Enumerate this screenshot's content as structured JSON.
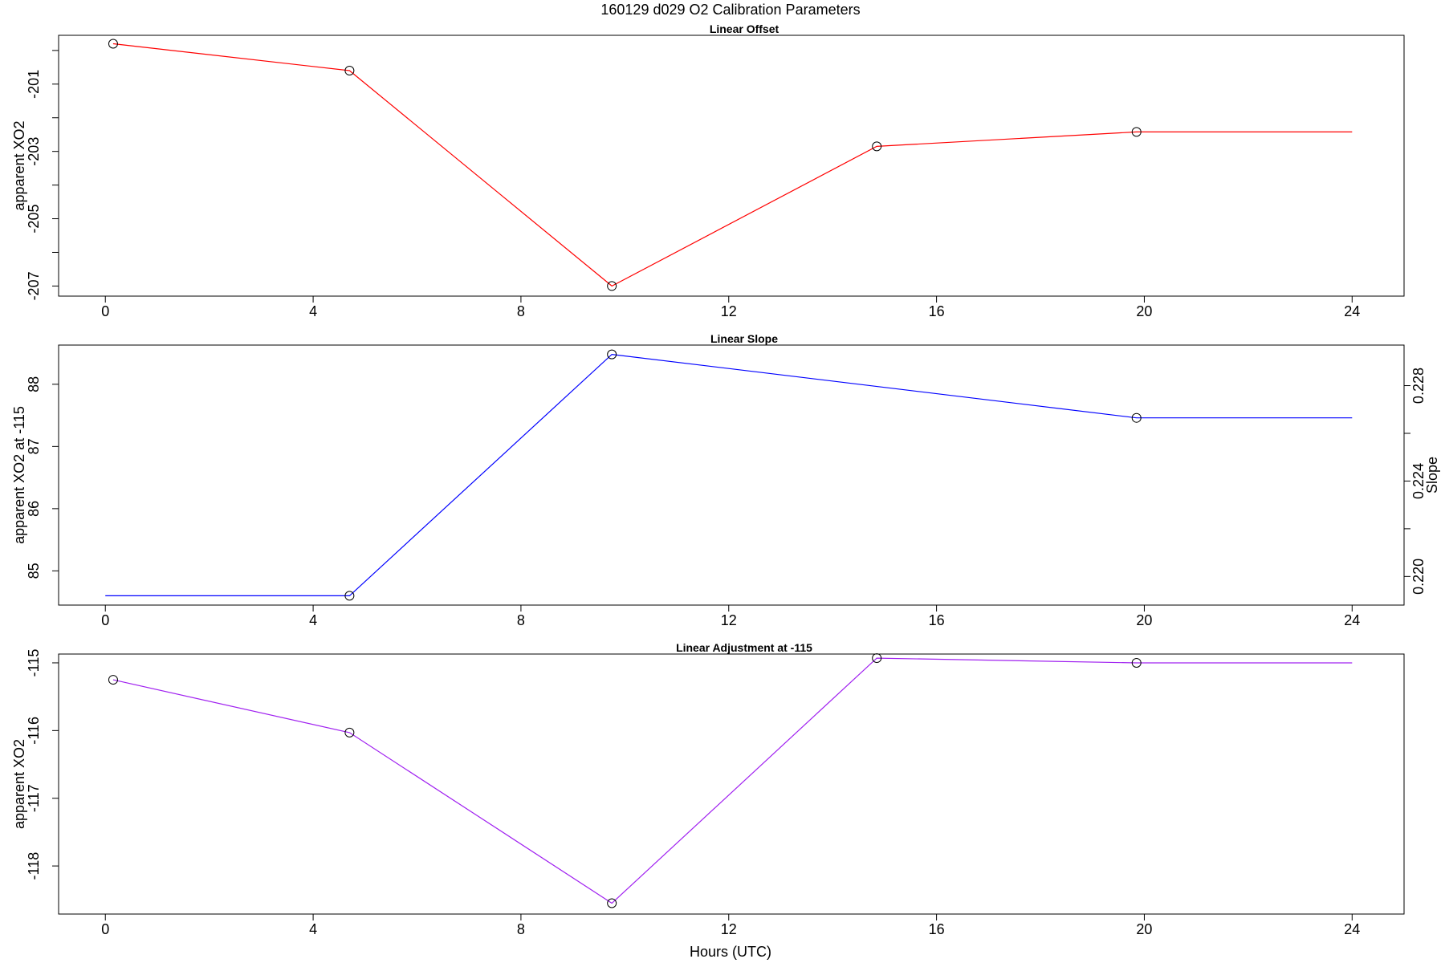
{
  "figure": {
    "title": "160129   d029   O2 Calibration Parameters",
    "xlabel": "Hours (UTC)"
  },
  "chart_data": [
    {
      "type": "line",
      "title": "Linear Offset",
      "xlabel": "",
      "ylabel": "apparent XO2",
      "xlim": [
        -0.9,
        25.0
      ],
      "ylim": [
        -207.3,
        -199.55
      ],
      "x_ticks": [
        0,
        4,
        8,
        12,
        16,
        20,
        24
      ],
      "y_ticks": [
        -201,
        -203,
        -205,
        -207
      ],
      "y_minor_ticks": [
        -200,
        -202,
        -204,
        -206
      ],
      "color": "#ff0000",
      "series": [
        {
          "x": [
            0.15,
            4.7,
            9.75,
            14.85,
            19.85,
            24.0
          ],
          "y": [
            -199.8,
            -200.6,
            -207.0,
            -202.85,
            -202.42,
            -202.42
          ],
          "markers": [
            true,
            true,
            true,
            true,
            true,
            false
          ]
        }
      ]
    },
    {
      "type": "line",
      "title": "Linear Slope",
      "xlabel": "",
      "ylabel": "apparent XO2 at -115",
      "y2label": "Slope",
      "xlim": [
        -0.9,
        25.0
      ],
      "ylim": [
        84.45,
        88.63
      ],
      "x_ticks": [
        0,
        4,
        8,
        12,
        16,
        20,
        24
      ],
      "y_ticks": [
        85,
        86,
        87,
        88
      ],
      "y2_ticks": [
        0.22,
        0.224,
        0.228
      ],
      "y2_tick_labels": [
        "0.220",
        "0.224",
        "0.228"
      ],
      "y2_minor_ticks": [
        0.222,
        0.226
      ],
      "y2_lim": [
        0.2188,
        0.2297
      ],
      "color": "#0000ff",
      "series": [
        {
          "x": [
            0.0,
            4.7,
            9.75,
            19.85,
            24.0
          ],
          "y": [
            84.6,
            84.6,
            88.48,
            87.46,
            87.46
          ],
          "markers": [
            false,
            true,
            true,
            true,
            false
          ]
        }
      ]
    },
    {
      "type": "line",
      "title": "Linear Adjustment at -115",
      "xlabel": "Hours (UTC)",
      "ylabel": "apparent XO2",
      "xlim": [
        -0.9,
        25.0
      ],
      "ylim": [
        -118.71,
        -114.87
      ],
      "x_ticks": [
        0,
        4,
        8,
        12,
        16,
        20,
        24
      ],
      "y_ticks": [
        -115,
        -116,
        -117,
        -118
      ],
      "color": "#a020f0",
      "series": [
        {
          "x": [
            0.15,
            4.7,
            9.75,
            14.85,
            19.85,
            24.0
          ],
          "y": [
            -115.25,
            -116.03,
            -118.55,
            -114.93,
            -115.0,
            -115.0
          ],
          "markers": [
            true,
            true,
            true,
            true,
            true,
            false
          ]
        }
      ]
    }
  ]
}
